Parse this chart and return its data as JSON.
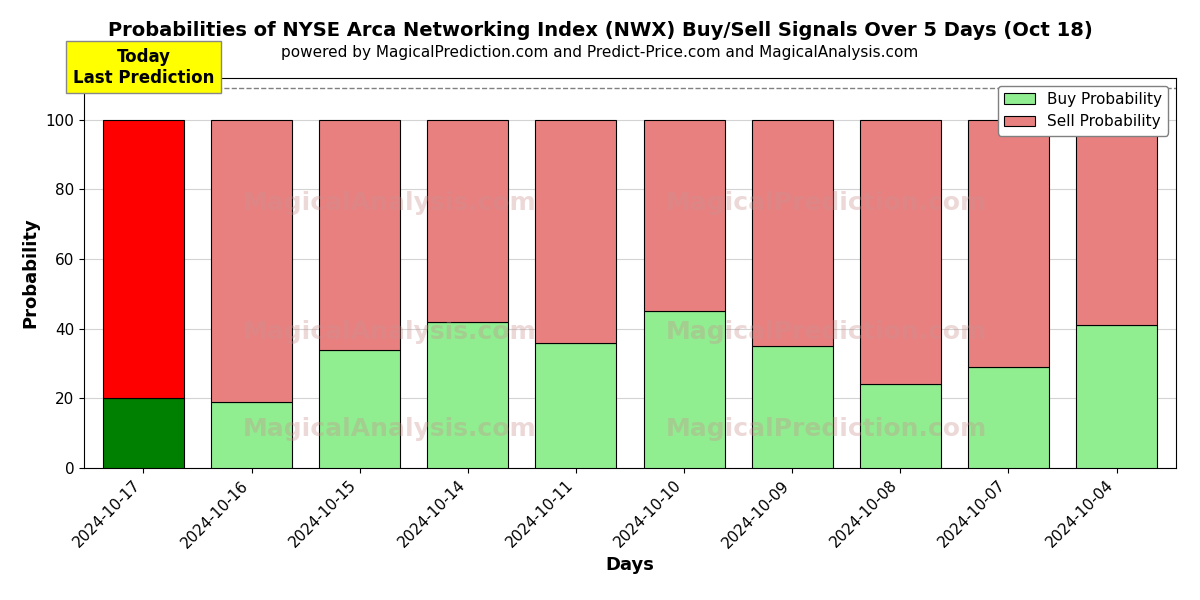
{
  "title": "Probabilities of NYSE Arca Networking Index (NWX) Buy/Sell Signals Over 5 Days (Oct 18)",
  "subtitle": "powered by MagicalPrediction.com and Predict-Price.com and MagicalAnalysis.com",
  "xlabel": "Days",
  "ylabel": "Probability",
  "categories": [
    "2024-10-17",
    "2024-10-16",
    "2024-10-15",
    "2024-10-14",
    "2024-10-11",
    "2024-10-10",
    "2024-10-09",
    "2024-10-08",
    "2024-10-07",
    "2024-10-04"
  ],
  "buy_values": [
    20,
    19,
    34,
    42,
    36,
    45,
    35,
    24,
    29,
    41
  ],
  "sell_values": [
    80,
    81,
    66,
    58,
    64,
    55,
    65,
    76,
    71,
    59
  ],
  "first_bar_buy_color": "#008000",
  "first_bar_sell_color": "#ff0000",
  "other_buy_color": "#90ee90",
  "other_sell_color": "#e88080",
  "bar_edge_color": "#000000",
  "bar_width": 0.75,
  "ylim": [
    0,
    112
  ],
  "yticks": [
    0,
    20,
    40,
    60,
    80,
    100
  ],
  "dashed_line_y": 109,
  "legend_buy_color": "#90ee90",
  "legend_sell_color": "#e88080",
  "today_box_color": "#ffff00",
  "today_box_text": "Today\nLast Prediction",
  "watermark_color": "#cc9090",
  "watermark_alpha": 0.35,
  "title_fontsize": 14,
  "subtitle_fontsize": 11,
  "axis_label_fontsize": 13,
  "tick_fontsize": 11,
  "legend_fontsize": 11,
  "today_fontsize": 12
}
